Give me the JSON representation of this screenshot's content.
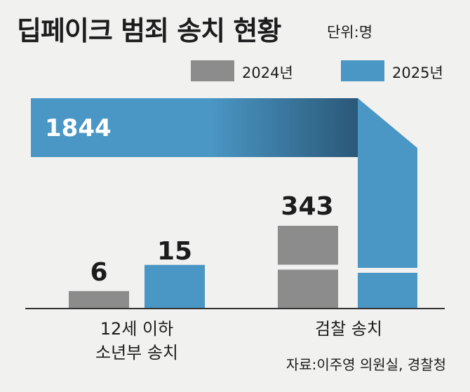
{
  "chart_data": {
    "type": "bar",
    "title": "딥페이크 범죄 송치 현황",
    "unit": "단위:명",
    "legend": [
      {
        "name": "2024년",
        "color": "#8c8c8c"
      },
      {
        "name": "2025년",
        "color": "#4a96c4"
      }
    ],
    "categories": [
      {
        "lines": [
          "12세 이하",
          "소년부 송치"
        ]
      },
      {
        "lines": [
          "검찰 송치"
        ]
      }
    ],
    "series": [
      {
        "name": "2024년",
        "values": [
          6,
          343
        ]
      },
      {
        "name": "2025년",
        "values": [
          15,
          1844
        ]
      }
    ],
    "source": "자료:이주영 의원실, 경찰청"
  },
  "colors": {
    "bar_2024": "#8c8c8c",
    "bar_2025": "#4a96c4",
    "bar_2025_dark": "#2a5878",
    "background": "#f1f1ef",
    "axis": "#333333"
  }
}
